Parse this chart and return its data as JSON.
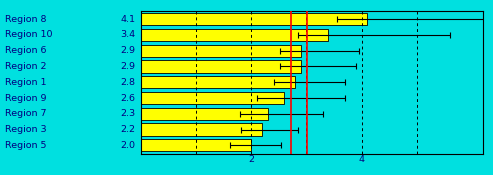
{
  "regions": [
    "Region 8",
    "Region 10",
    "Region 6",
    "Region 2",
    "Region 1",
    "Region 9",
    "Region 7",
    "Region 3",
    "Region 5"
  ],
  "values": [
    4.1,
    3.4,
    2.9,
    2.9,
    2.8,
    2.6,
    2.3,
    2.2,
    2.0
  ],
  "xerr_low": [
    0.55,
    0.55,
    0.38,
    0.38,
    0.38,
    0.5,
    0.5,
    0.38,
    0.38
  ],
  "xerr_high": [
    2.2,
    2.2,
    1.05,
    1.0,
    0.9,
    1.1,
    1.0,
    0.65,
    0.55
  ],
  "bar_color": "#ffff00",
  "bar_edge_color": "#000000",
  "bg_color": "#00e0e0",
  "text_color": "#000080",
  "red_lines": [
    2.72,
    3.02
  ],
  "dashed_lines": [
    1.0,
    2.0,
    3.0,
    4.0,
    5.0
  ],
  "xlim": [
    0.0,
    6.2
  ],
  "bar_height": 0.78,
  "label_fontsize": 6.8,
  "value_fontsize": 6.8
}
